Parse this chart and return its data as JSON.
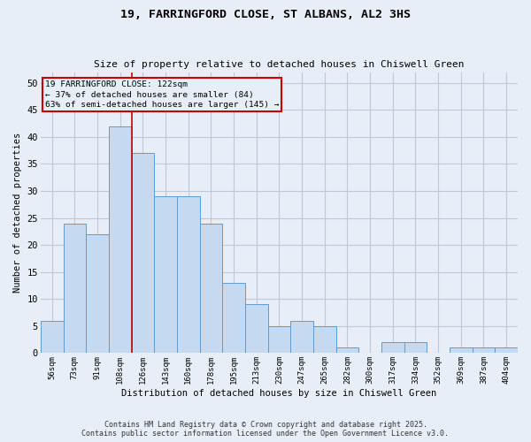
{
  "title1": "19, FARRINGFORD CLOSE, ST ALBANS, AL2 3HS",
  "title2": "Size of property relative to detached houses in Chiswell Green",
  "xlabel": "Distribution of detached houses by size in Chiswell Green",
  "ylabel": "Number of detached properties",
  "bin_labels": [
    "56sqm",
    "73sqm",
    "91sqm",
    "108sqm",
    "126sqm",
    "143sqm",
    "160sqm",
    "178sqm",
    "195sqm",
    "213sqm",
    "230sqm",
    "247sqm",
    "265sqm",
    "282sqm",
    "300sqm",
    "317sqm",
    "334sqm",
    "352sqm",
    "369sqm",
    "387sqm",
    "404sqm"
  ],
  "bar_values": [
    6,
    24,
    22,
    42,
    37,
    29,
    29,
    24,
    13,
    9,
    5,
    6,
    5,
    1,
    0,
    2,
    2,
    0,
    1,
    1,
    1
  ],
  "bar_color": "#c5d9f1",
  "bar_edge_color": "#5b9bd5",
  "grid_color": "#c0c8d8",
  "background_color": "#e8eef7",
  "annotation_line1": "19 FARRINGFORD CLOSE: 122sqm",
  "annotation_line2": "← 37% of detached houses are smaller (84)",
  "annotation_line3": "63% of semi-detached houses are larger (145) →",
  "vline_color": "#cc0000",
  "annotation_box_edge": "#cc0000",
  "footer1": "Contains HM Land Registry data © Crown copyright and database right 2025.",
  "footer2": "Contains public sector information licensed under the Open Government Licence v3.0.",
  "ylim": [
    0,
    52
  ],
  "yticks": [
    0,
    5,
    10,
    15,
    20,
    25,
    30,
    35,
    40,
    45,
    50
  ]
}
